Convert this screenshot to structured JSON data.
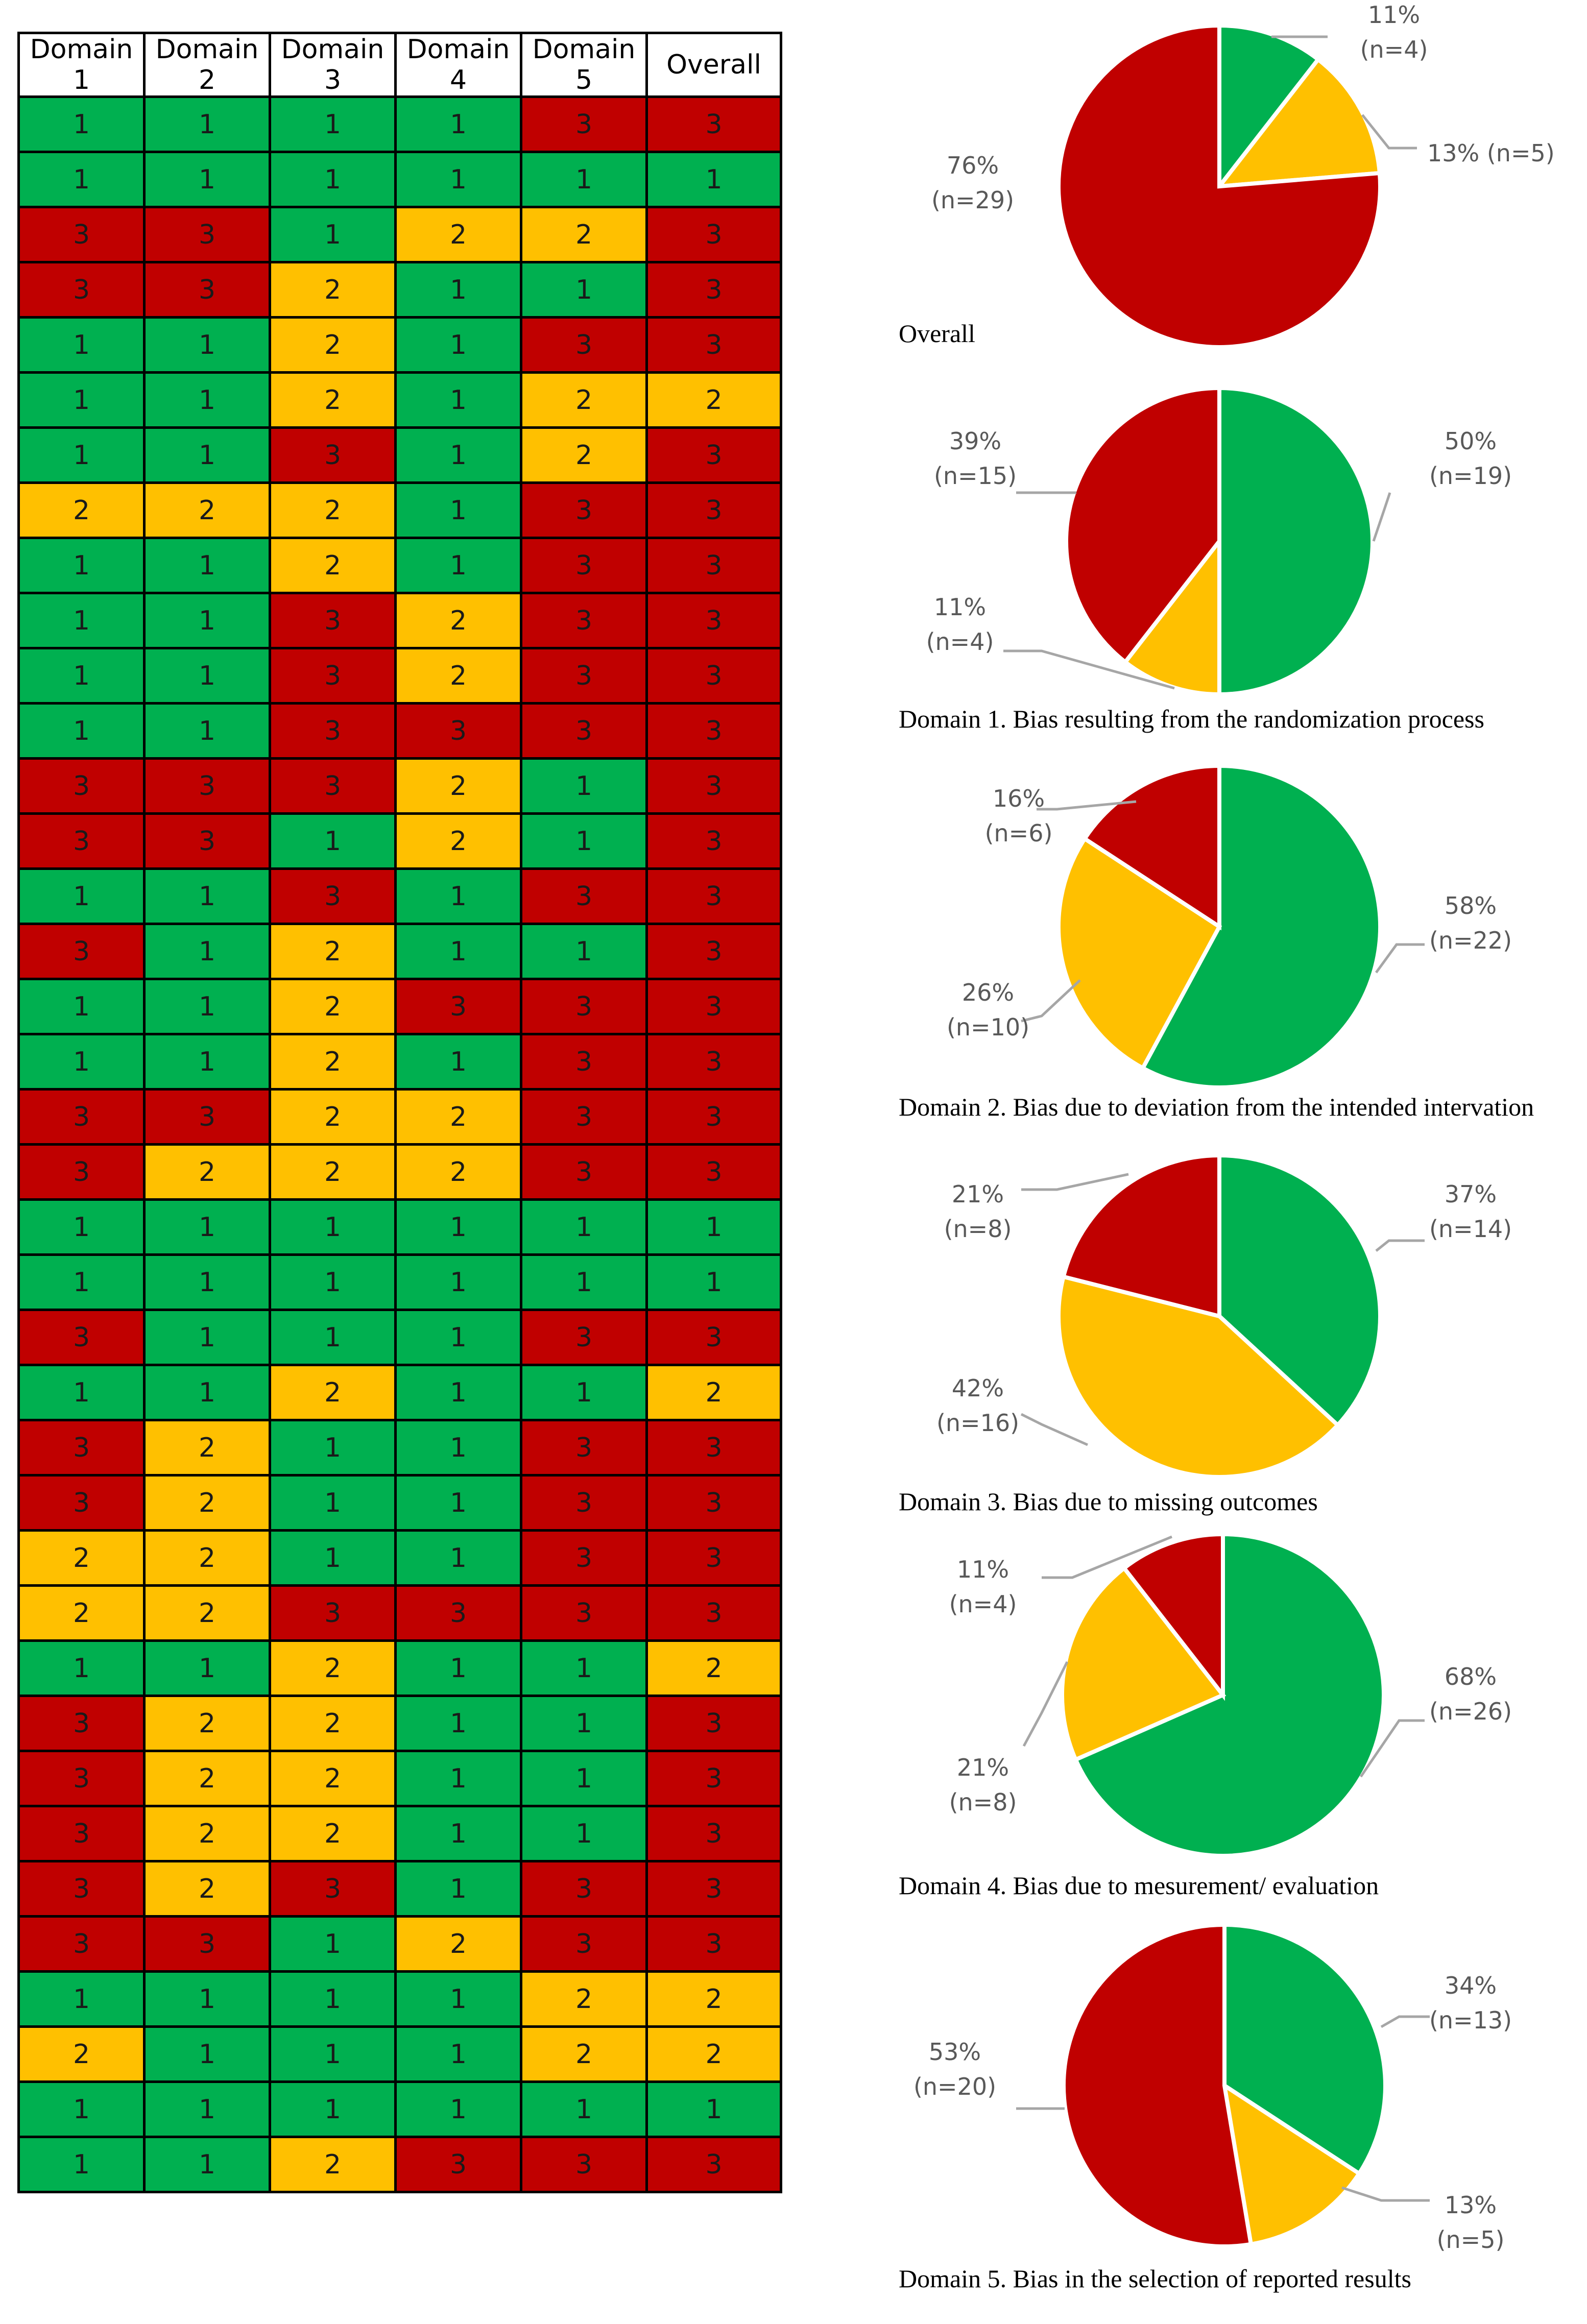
{
  "table": {
    "headers": [
      "Domain 1",
      "Domain 2",
      "Domain 3",
      "Domain 4",
      "Domain 5",
      "Overall"
    ],
    "rows": [
      [
        1,
        1,
        1,
        1,
        3,
        3
      ],
      [
        1,
        1,
        1,
        1,
        1,
        1
      ],
      [
        3,
        3,
        1,
        2,
        2,
        3
      ],
      [
        3,
        3,
        2,
        1,
        1,
        3
      ],
      [
        1,
        1,
        2,
        1,
        3,
        3
      ],
      [
        1,
        1,
        2,
        1,
        2,
        2
      ],
      [
        1,
        1,
        3,
        1,
        2,
        3
      ],
      [
        2,
        2,
        2,
        1,
        3,
        3
      ],
      [
        1,
        1,
        2,
        1,
        3,
        3
      ],
      [
        1,
        1,
        3,
        2,
        3,
        3
      ],
      [
        1,
        1,
        3,
        2,
        3,
        3
      ],
      [
        1,
        1,
        3,
        3,
        3,
        3
      ],
      [
        3,
        3,
        3,
        2,
        1,
        3
      ],
      [
        3,
        3,
        1,
        2,
        1,
        3
      ],
      [
        1,
        1,
        3,
        1,
        3,
        3
      ],
      [
        3,
        1,
        2,
        1,
        1,
        3
      ],
      [
        1,
        1,
        2,
        3,
        3,
        3
      ],
      [
        1,
        1,
        2,
        1,
        3,
        3
      ],
      [
        3,
        3,
        2,
        2,
        3,
        3
      ],
      [
        3,
        2,
        2,
        2,
        3,
        3
      ],
      [
        1,
        1,
        1,
        1,
        1,
        1
      ],
      [
        1,
        1,
        1,
        1,
        1,
        1
      ],
      [
        3,
        1,
        1,
        1,
        3,
        3
      ],
      [
        1,
        1,
        2,
        1,
        1,
        2
      ],
      [
        3,
        2,
        1,
        1,
        3,
        3
      ],
      [
        3,
        2,
        1,
        1,
        3,
        3
      ],
      [
        2,
        2,
        1,
        1,
        3,
        3
      ],
      [
        2,
        2,
        3,
        3,
        3,
        3
      ],
      [
        1,
        1,
        2,
        1,
        1,
        2
      ],
      [
        3,
        2,
        2,
        1,
        1,
        3
      ],
      [
        3,
        2,
        2,
        1,
        1,
        3
      ],
      [
        3,
        2,
        2,
        1,
        1,
        3
      ],
      [
        3,
        2,
        3,
        1,
        3,
        3
      ],
      [
        3,
        3,
        1,
        2,
        3,
        3
      ],
      [
        1,
        1,
        1,
        1,
        2,
        2
      ],
      [
        2,
        1,
        1,
        1,
        2,
        2
      ],
      [
        1,
        1,
        1,
        1,
        1,
        1
      ],
      [
        1,
        1,
        2,
        3,
        3,
        3
      ]
    ]
  },
  "colors": {
    "1": "#00b050",
    "2": "#ffc000",
    "3": "#c00000"
  },
  "chart_data": [
    {
      "type": "pie",
      "title": "Overall",
      "slices": [
        {
          "level": 1,
          "percent": 11,
          "n": 4,
          "label": "11%",
          "n_label": "(n=4)"
        },
        {
          "level": 2,
          "percent": 13,
          "n": 5,
          "label": "13%",
          "n_label": "(n=5)"
        },
        {
          "level": 3,
          "percent": 76,
          "n": 29,
          "label": "76%",
          "n_label": "(n=29)"
        }
      ]
    },
    {
      "type": "pie",
      "title": "Domain 1. Bias resulting from the randomization process",
      "slices": [
        {
          "level": 1,
          "percent": 50,
          "n": 19,
          "label": "50%",
          "n_label": "(n=19)"
        },
        {
          "level": 2,
          "percent": 11,
          "n": 4,
          "label": "11%",
          "n_label": "(n=4)"
        },
        {
          "level": 3,
          "percent": 39,
          "n": 15,
          "label": "39%",
          "n_label": "(n=15)"
        }
      ]
    },
    {
      "type": "pie",
      "title": "Domain 2. Bias due to deviation from the intended intervation",
      "slices": [
        {
          "level": 1,
          "percent": 58,
          "n": 22,
          "label": "58%",
          "n_label": "(n=22)"
        },
        {
          "level": 2,
          "percent": 26,
          "n": 10,
          "label": "26%",
          "n_label": "(n=10)"
        },
        {
          "level": 3,
          "percent": 16,
          "n": 6,
          "label": "16%",
          "n_label": "(n=6)"
        }
      ]
    },
    {
      "type": "pie",
      "title": "Domain 3. Bias due to missing outcomes",
      "slices": [
        {
          "level": 1,
          "percent": 37,
          "n": 14,
          "label": "37%",
          "n_label": "(n=14)"
        },
        {
          "level": 2,
          "percent": 42,
          "n": 16,
          "label": "42%",
          "n_label": "(n=16)"
        },
        {
          "level": 3,
          "percent": 21,
          "n": 8,
          "label": "21%",
          "n_label": "(n=8)"
        }
      ]
    },
    {
      "type": "pie",
      "title": "Domain 4. Bias due to mesurement/ evaluation",
      "slices": [
        {
          "level": 1,
          "percent": 68,
          "n": 26,
          "label": "68%",
          "n_label": "(n=26)"
        },
        {
          "level": 2,
          "percent": 21,
          "n": 8,
          "label": "21%",
          "n_label": "(n=8)"
        },
        {
          "level": 3,
          "percent": 11,
          "n": 4,
          "label": "11%",
          "n_label": "(n=4)"
        }
      ]
    },
    {
      "type": "pie",
      "title": "Domain 5. Bias in the selection of reported results",
      "slices": [
        {
          "level": 1,
          "percent": 34,
          "n": 13,
          "label": "34%",
          "n_label": "(n=13)"
        },
        {
          "level": 2,
          "percent": 13,
          "n": 5,
          "label": "13%",
          "n_label": "(n=5)"
        },
        {
          "level": 3,
          "percent": 53,
          "n": 20,
          "label": "53%",
          "n_label": "(n=20)"
        }
      ]
    }
  ]
}
